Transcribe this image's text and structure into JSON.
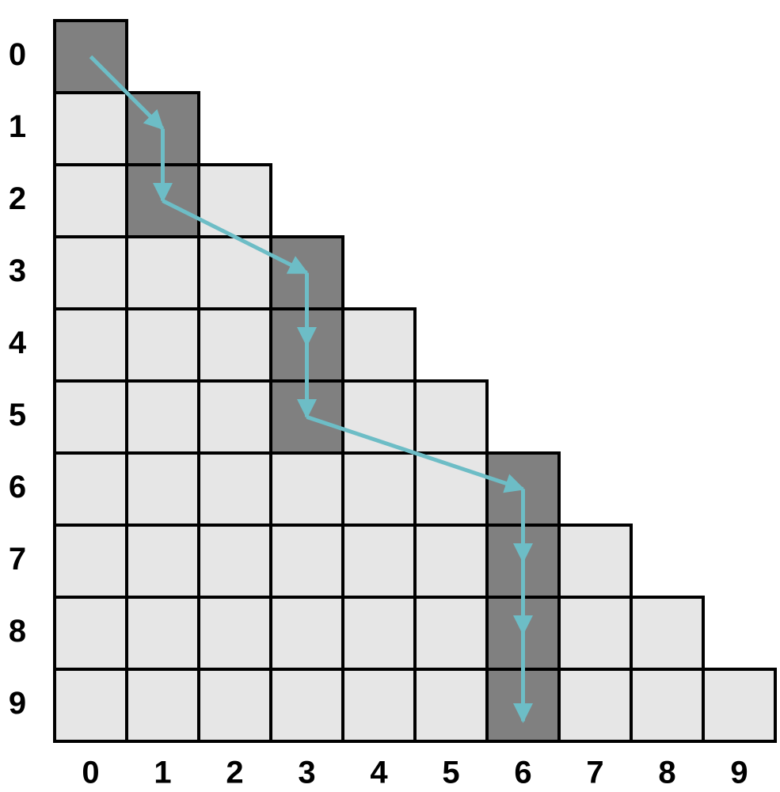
{
  "row_labels": [
    "0",
    "1",
    "2",
    "3",
    "4",
    "5",
    "6",
    "7",
    "8",
    "9"
  ],
  "col_labels": [
    "0",
    "1",
    "2",
    "3",
    "4",
    "5",
    "6",
    "7",
    "8",
    "9"
  ],
  "path": [
    0,
    1,
    1,
    3,
    3,
    3,
    6,
    6,
    6,
    6
  ]
}
